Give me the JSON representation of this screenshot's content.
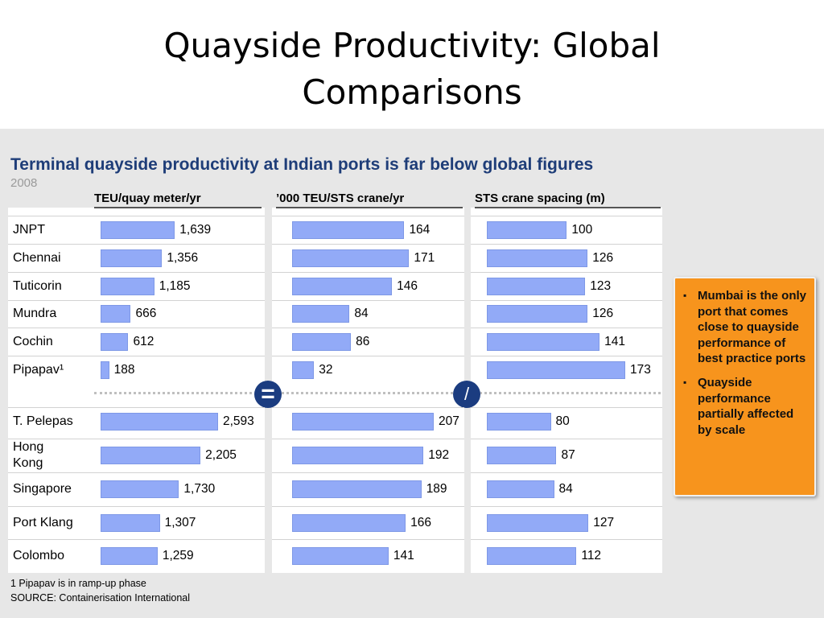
{
  "slide": {
    "title_line1": "Quayside Productivity: Global",
    "title_line2": "Comparisons",
    "subtitle": "Terminal quayside productivity at Indian ports is far below global figures",
    "year": "2008",
    "symbol_equal": "=",
    "symbol_slash": "/",
    "footnote": "1 Pipapav is in ramp-up phase",
    "source": "SOURCE: Containerisation International"
  },
  "callout": {
    "points": [
      "Mumbai is the only port that comes close to quayside performance of best practice ports",
      "Quayside performance partially affected by scale"
    ]
  },
  "colors": {
    "bar": "#92aaf7",
    "subtitle": "#1e3d78",
    "circle": "#1b3c80",
    "callout": "#f7941d",
    "panel": "#e7e7e7"
  },
  "chart_data": {
    "type": "bar",
    "orientation": "horizontal",
    "categories": [
      "JNPT",
      "Chennai",
      "Tuticorin",
      "Mundra",
      "Cochin",
      "Pipapav¹",
      "T. Pelepas",
      "Hong Kong",
      "Singapore",
      "Port Klang",
      "Colombo"
    ],
    "groups": [
      "indian",
      "indian",
      "indian",
      "indian",
      "indian",
      "indian",
      "global",
      "global",
      "global",
      "global",
      "global"
    ],
    "series": [
      {
        "name": "TEU/quay meter/yr",
        "values": [
          1639,
          1356,
          1185,
          666,
          612,
          188,
          2593,
          2205,
          1730,
          1307,
          1259
        ],
        "labels": [
          "1,639",
          "1,356",
          "1,185",
          "666",
          "612",
          "188",
          "2,593",
          "2,205",
          "1,730",
          "1,307",
          "1,259"
        ],
        "xmax": 2593
      },
      {
        "name": "’000 TEU/STS crane/yr",
        "values": [
          164,
          171,
          146,
          84,
          86,
          32,
          207,
          192,
          189,
          166,
          141
        ],
        "labels": [
          "164",
          "171",
          "146",
          "84",
          "86",
          "32",
          "207",
          "192",
          "189",
          "166",
          "141"
        ],
        "xmax": 207
      },
      {
        "name": "STS crane spacing (m)",
        "values": [
          100,
          126,
          123,
          126,
          141,
          173,
          80,
          87,
          84,
          127,
          112
        ],
        "labels": [
          "100",
          "126",
          "123",
          "126",
          "141",
          "173",
          "80",
          "87",
          "84",
          "127",
          "112"
        ],
        "xmax": 173
      }
    ]
  }
}
